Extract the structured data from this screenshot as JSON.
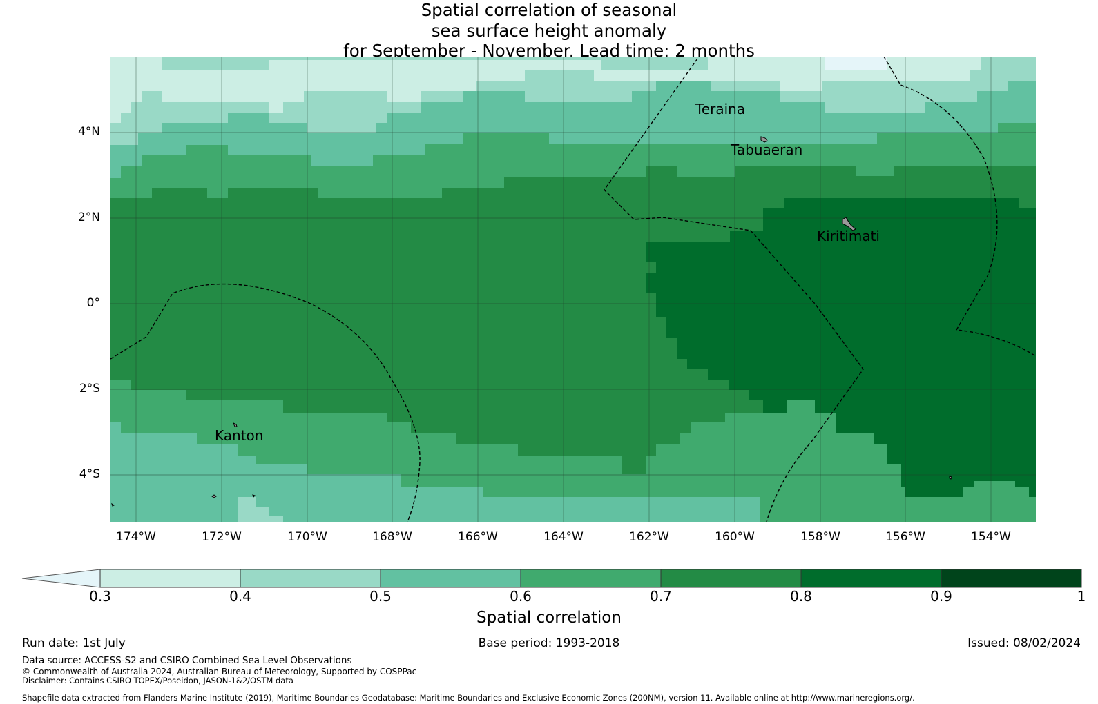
{
  "title": {
    "line1": "Spatial correlation of seasonal",
    "line2": "sea surface height anomaly",
    "line3": "for September - November. Lead time: 2 months"
  },
  "map": {
    "lon_ticks": [
      "174°W",
      "172°W",
      "170°W",
      "168°W",
      "166°W",
      "164°W",
      "162°W",
      "160°W",
      "158°W",
      "156°W",
      "154°W"
    ],
    "lat_ticks": [
      "4°N",
      "2°N",
      "0°",
      "2°S",
      "4°S"
    ],
    "places": {
      "teraina": "Teraina",
      "tabuaeran": "Tabuaeran",
      "kiritimati": "Kiritimati",
      "kanton": "Kanton"
    },
    "extent": {
      "lon_min": -174.6,
      "lon_max": -153,
      "lat_min": -5.1,
      "lat_max": 5.8
    },
    "boundary_style": "dashed black",
    "field_colors": {
      "0.3-0.4": "#cceee4",
      "0.4-0.5": "#99d9c6",
      "0.5-0.6": "#62c1a1",
      "0.6-0.7": "#40aa6e",
      "0.7-0.8": "#238b45",
      "0.8-0.9": "#006d2c",
      "0.9-1": "#00441b"
    }
  },
  "colorbar": {
    "ticks": [
      "0.3",
      "0.4",
      "0.5",
      "0.6",
      "0.7",
      "0.8",
      "0.9",
      "1"
    ],
    "label": "Spatial correlation",
    "colors": [
      "#cceee4",
      "#99d9c6",
      "#62c1a1",
      "#40aa6e",
      "#238b45",
      "#006d2c",
      "#00441b"
    ],
    "extend_color": "#e5f5f9"
  },
  "footer": {
    "run_date": "Run date: 1st July",
    "base_period": "Base period: 1993-2018",
    "issued": "Issued: 08/02/2024",
    "data_source": "Data source: ACCESS-S2 and CSIRO Combined Sea Level Observations",
    "copyright": "© Commonwealth of Australia 2024, Australian Bureau of Meteorology, Supported by COSPPac",
    "disclaimer": "Disclaimer: Contains CSIRO TOPEX/Poseidon, JASON-1&2/OSTM data",
    "shapefile": "Shapefile data extracted from Flanders Marine Institute (2019), Maritime Boundaries Geodatabase: Maritime Boundaries and Exclusive Economic Zones (200NM), version 11. Available online at http://www.marineregions.org/."
  }
}
